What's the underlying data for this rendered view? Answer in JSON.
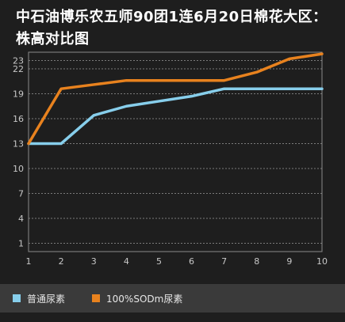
{
  "title": "中石油博乐农五师90团1连6月20日棉花大区：株高对比图",
  "colors": {
    "series_1": "#87CEEB",
    "series_2": "#E8821E",
    "grid": "#9a9a9a",
    "axis_text": "#c8c8c8"
  },
  "chart_data": {
    "type": "line",
    "x": [
      1,
      2,
      3,
      4,
      5,
      6,
      7,
      8,
      9,
      10
    ],
    "ylim": [
      0,
      24
    ],
    "yticks": [
      1,
      4,
      7,
      10,
      13,
      16,
      19,
      22,
      23
    ],
    "grid": "horizontal dotted",
    "legend_position": "bottom",
    "series": [
      {
        "name": "普通尿素",
        "color": "#87CEEB",
        "values": [
          13,
          13,
          16.4,
          17.5,
          18.1,
          18.7,
          19.6,
          19.6,
          19.6,
          19.6
        ]
      },
      {
        "name": "100%SODm尿素",
        "color": "#E8821E",
        "values": [
          13,
          19.6,
          20.1,
          20.6,
          20.6,
          20.6,
          20.6,
          21.6,
          23.2,
          23.8
        ]
      }
    ]
  }
}
